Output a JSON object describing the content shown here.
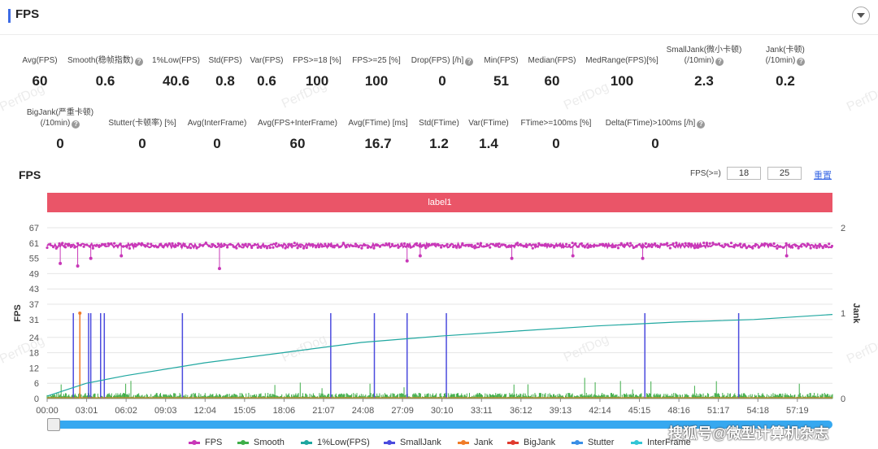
{
  "header": {
    "title": "FPS"
  },
  "stats_row1": [
    {
      "label": "Avg(FPS)",
      "value": "60",
      "help": false
    },
    {
      "label": "Smooth(稳帧指数)",
      "value": "0.6",
      "help": true
    },
    {
      "label": "1%Low(FPS)",
      "value": "40.6",
      "help": false
    },
    {
      "label": "Std(FPS)",
      "value": "0.8",
      "help": false
    },
    {
      "label": "Var(FPS)",
      "value": "0.6",
      "help": false
    },
    {
      "label": "FPS>=18 [%]",
      "value": "100",
      "help": false
    },
    {
      "label": "FPS>=25 [%]",
      "value": "100",
      "help": false
    },
    {
      "label": "Drop(FPS) [/h]",
      "value": "0",
      "help": true
    },
    {
      "label": "Min(FPS)",
      "value": "51",
      "help": false
    },
    {
      "label": "Median(FPS)",
      "value": "60",
      "help": false
    },
    {
      "label": "MedRange(FPS)[%]",
      "value": "100",
      "help": false
    },
    {
      "label": "SmallJank(微小卡顿)",
      "label2": "(/10min)",
      "value": "2.3",
      "help": true
    },
    {
      "label": "Jank(卡顿)",
      "label2": "(/10min)",
      "value": "0.2",
      "help": true
    }
  ],
  "stats_row2": [
    {
      "label": "BigJank(严重卡顿)",
      "label2": "(/10min)",
      "value": "0",
      "help": true
    },
    {
      "label": "Stutter(卡顿率) [%]",
      "value": "0",
      "help": false
    },
    {
      "label": "Avg(InterFrame)",
      "value": "0",
      "help": false
    },
    {
      "label": "Avg(FPS+InterFrame)",
      "value": "60",
      "help": false
    },
    {
      "label": "Avg(FTime) [ms]",
      "value": "16.7",
      "help": false
    },
    {
      "label": "Std(FTime)",
      "value": "1.2",
      "help": false
    },
    {
      "label": "Var(FTime)",
      "value": "1.4",
      "help": false
    },
    {
      "label": "FTime>=100ms [%]",
      "value": "0",
      "help": false
    },
    {
      "label": "Delta(FTime)>100ms [/h]",
      "value": "0",
      "help": true
    }
  ],
  "watermark": "PerfDog",
  "chart_panel": {
    "title": "FPS",
    "threshold_label": "FPS(>=)",
    "threshold_low": "18",
    "threshold_high": "25",
    "reset_label": "重置",
    "label_bar": "label1"
  },
  "chart_data": {
    "type": "line",
    "x_ticks": [
      "00:00",
      "03:01",
      "06:02",
      "09:03",
      "12:04",
      "15:05",
      "18:06",
      "21:07",
      "24:08",
      "27:09",
      "30:10",
      "33:11",
      "36:12",
      "39:13",
      "42:14",
      "45:15",
      "48:16",
      "51:17",
      "54:18",
      "57:19"
    ],
    "xlim_seconds": [
      0,
      3600
    ],
    "ylabel": "FPS",
    "y_ticks": [
      0,
      6,
      12,
      18,
      24,
      31,
      37,
      43,
      49,
      55,
      61,
      67
    ],
    "ylim": [
      0,
      67
    ],
    "y2label": "Jank",
    "y2_ticks": [
      0,
      1,
      2
    ],
    "y2lim": [
      0,
      2
    ],
    "legend_position": "bottom",
    "series": [
      {
        "name": "FPS",
        "color": "#c838b8",
        "typical_value": 60,
        "dips": [
          [
            60,
            53
          ],
          [
            140,
            52
          ],
          [
            200,
            55
          ],
          [
            340,
            56
          ],
          [
            790,
            51
          ],
          [
            1650,
            54
          ],
          [
            1710,
            56
          ],
          [
            2130,
            55
          ],
          [
            2410,
            56
          ],
          [
            2730,
            55
          ],
          [
            3390,
            56
          ]
        ]
      },
      {
        "name": "Smooth",
        "color": "#3fae49",
        "typical_value": 1.5
      },
      {
        "name": "1%Low(FPS)",
        "color": "#1fa7a0",
        "points": [
          [
            0,
            1
          ],
          [
            180,
            6
          ],
          [
            360,
            9
          ],
          [
            720,
            14
          ],
          [
            1080,
            18
          ],
          [
            1440,
            22
          ],
          [
            1800,
            24.5
          ],
          [
            2160,
            26.5
          ],
          [
            2520,
            28.5
          ],
          [
            2880,
            30
          ],
          [
            3240,
            31
          ],
          [
            3600,
            33
          ]
        ]
      },
      {
        "name": "SmallJank",
        "color": "#4b4bde",
        "events_seconds": [
          120,
          190,
          200,
          245,
          262,
          620,
          1300,
          1500,
          1650,
          1830,
          2740,
          3170
        ]
      },
      {
        "name": "Jank",
        "color": "#f07c28",
        "events_seconds": [
          150
        ]
      },
      {
        "name": "BigJank",
        "color": "#e03b2e",
        "events_seconds": []
      },
      {
        "name": "Stutter",
        "color": "#3b8fe6"
      },
      {
        "name": "InterFrame",
        "color": "#33c6d6"
      }
    ]
  },
  "footer_credit": "搜狐号@微型计算机杂志"
}
